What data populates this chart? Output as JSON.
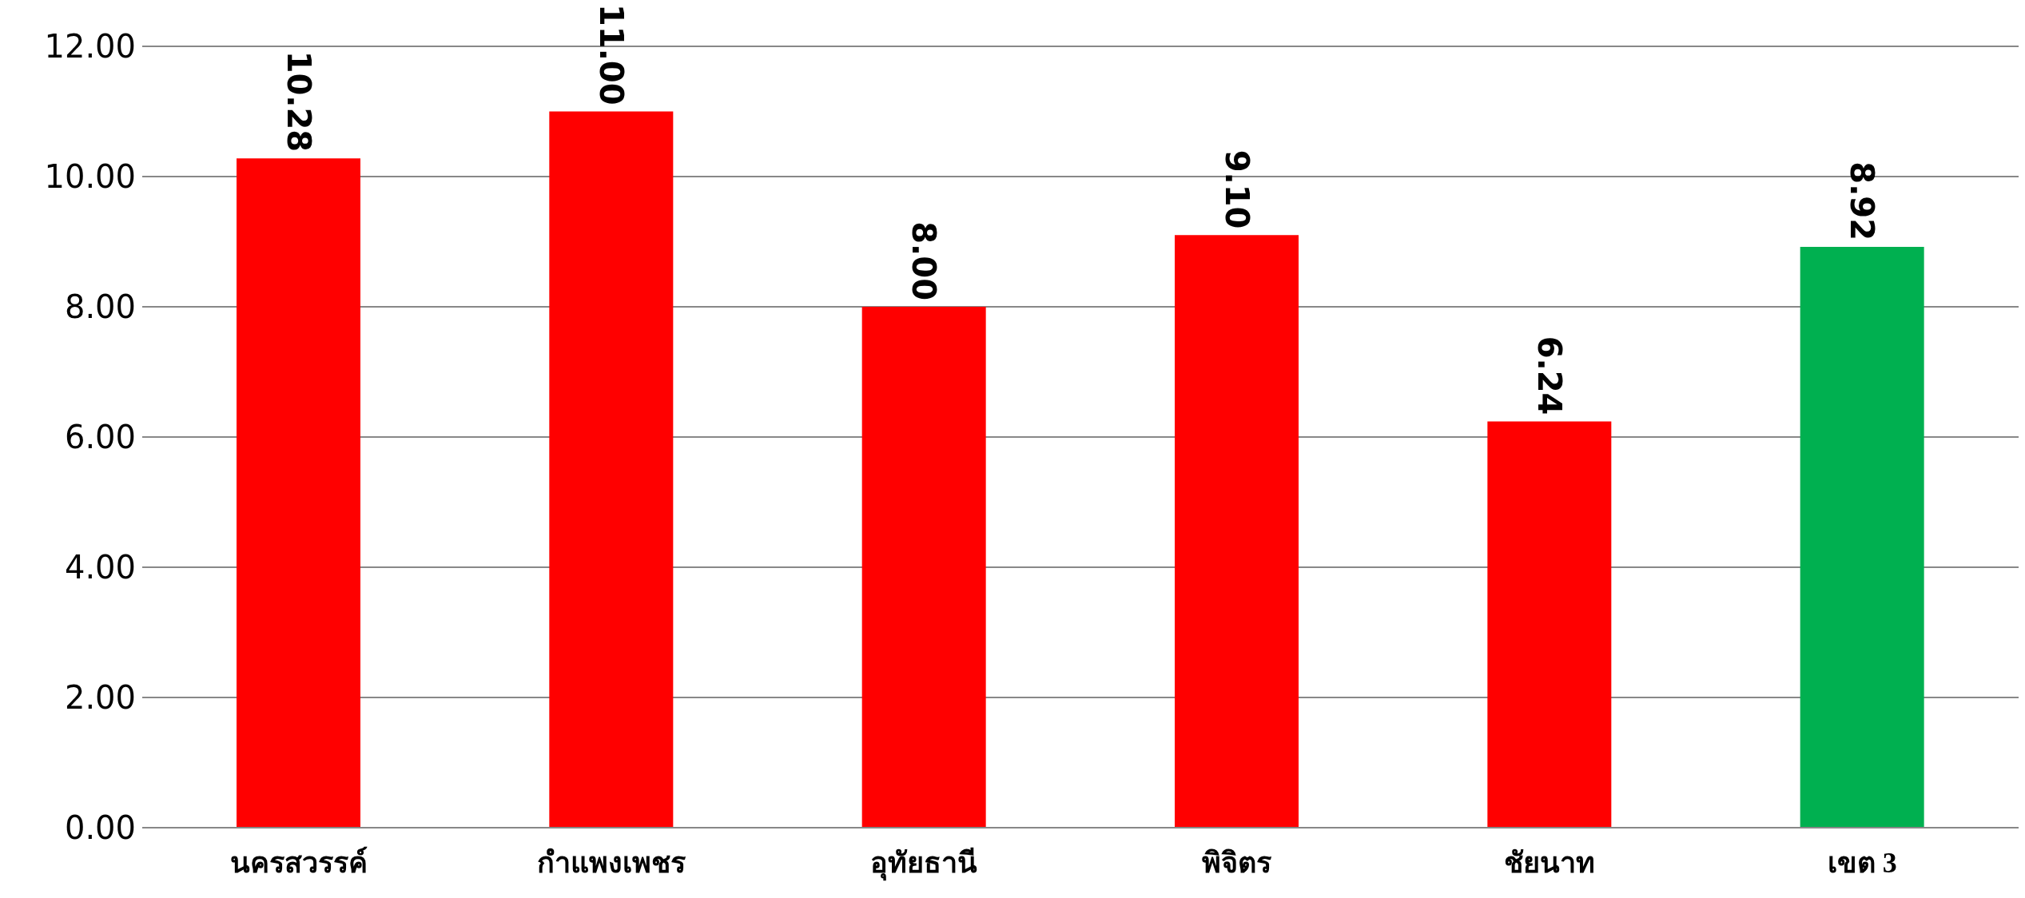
{
  "chart_data": {
    "type": "bar",
    "categories": [
      "นครสวรรค์",
      "กำแพงเพชร",
      "อุทัยธานี",
      "พิจิตร",
      "ชัยนาท",
      "เขต 3"
    ],
    "values": [
      10.28,
      11.0,
      8.0,
      9.1,
      6.24,
      8.92
    ],
    "colors": [
      "#ff0000",
      "#ff0000",
      "#ff0000",
      "#ff0000",
      "#ff0000",
      "#00b050"
    ],
    "value_labels": [
      "10.28",
      "11.00",
      "8.00",
      "9.10",
      "6.24",
      "8.92"
    ],
    "ylim": [
      0,
      12
    ],
    "yticks": [
      {
        "value": 0,
        "label": "0.00"
      },
      {
        "value": 2,
        "label": "2.00"
      },
      {
        "value": 4,
        "label": "4.00"
      },
      {
        "value": 6,
        "label": "6.00"
      },
      {
        "value": 8,
        "label": "8.00"
      },
      {
        "value": 10,
        "label": "10.00"
      },
      {
        "value": 12,
        "label": "12.00"
      }
    ],
    "grid": "y"
  }
}
